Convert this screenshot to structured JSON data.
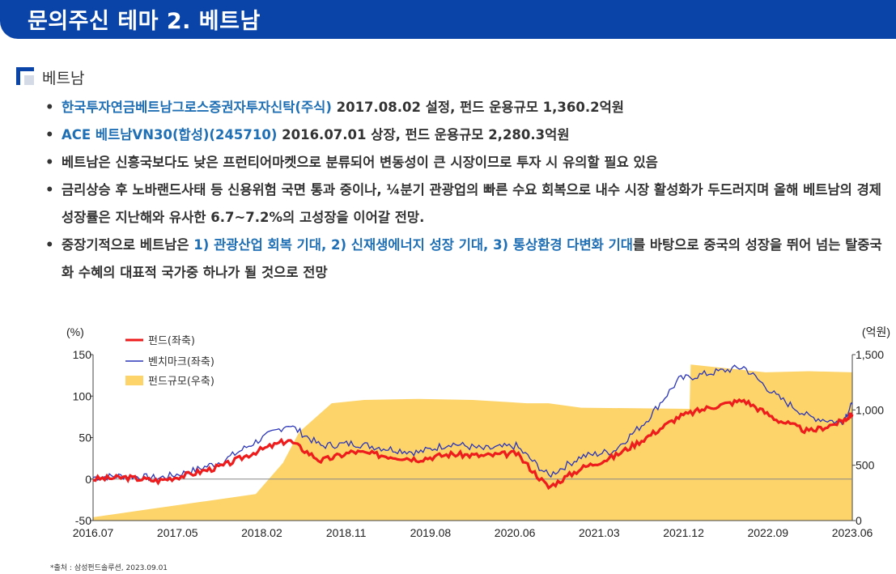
{
  "header": {
    "title": "문의주신 테마 2. 베트남"
  },
  "section": {
    "label": "베트남"
  },
  "bullets": [
    {
      "blue": "한국투자연금베트남그로스증권자투자신탁(주식)",
      "text": " 2017.08.02 설정, 펀드 운용규모 1,360.2억원"
    },
    {
      "blue": "ACE 베트남VN30(합성)(245710)",
      "text": " 2016.07.01 상장, 펀드 운용규모 2,280.3억원"
    },
    {
      "text": "베트남은 신흥국보다도 낮은 프런티어마켓으로 분류되어 변동성이 큰 시장이므로 투자 시 유의할 필요 있음"
    },
    {
      "text": "금리상승 후 노바랜드사태 등 신용위험 국면 통과 중이나, ¼분기 관광업의 빠른 수요 회복으로 내수 시장 활성화가 두드러지며 올해 베트남의 경제성장률은 지난해와 유사한 6.7~7.2%의 고성장을 이어갈 전망."
    },
    {
      "pre": "중장기적으로 베트남은 ",
      "blue": "1) 관광산업 회복 기대, 2) 신재생에너지 성장 기대, 3) 통상환경 다변화 기대",
      "post": "를 바탕으로 중국의 성장을 뛰어 넘는 탈중국화 수혜의 대표적 국가중 하나가 될 것으로 전망"
    }
  ],
  "chart_data": {
    "type": "line",
    "x_ticks": [
      "2016.07",
      "2017.05",
      "2018.02",
      "2018.11",
      "2019.08",
      "2020.06",
      "2021.03",
      "2021.12",
      "2022.09",
      "2023.06"
    ],
    "y_left": {
      "unit": "(%)",
      "min": -50,
      "max": 150,
      "ticks": [
        "150",
        "100",
        "50",
        "0",
        "-50"
      ],
      "tick_values": [
        150,
        100,
        50,
        0,
        -50
      ]
    },
    "y_right": {
      "unit": "(억원)",
      "min": 0,
      "max": 1500,
      "ticks": [
        "1,500",
        "1,000",
        "500",
        "0"
      ],
      "tick_values": [
        1500,
        1000,
        500,
        0
      ]
    },
    "colors": {
      "fund": "#ee1c1c",
      "benchmark": "#2b35b8",
      "aum": "#fdd46a"
    },
    "series": [
      {
        "name": "펀드(좌축)",
        "axis": "left",
        "x": [
          0,
          0.3,
          0.6,
          0.9,
          1.2,
          1.5,
          1.8,
          2.1,
          2.4,
          2.7,
          3.0,
          3.3,
          3.6,
          3.9,
          4.2,
          4.5,
          4.8,
          5.1,
          5.4,
          5.7,
          6.0,
          6.3,
          6.6,
          6.9,
          7.0
        ],
        "y": [
          0,
          2,
          -2,
          6,
          16,
          33,
          47,
          22,
          33,
          28,
          24,
          30,
          28,
          31,
          -10,
          13,
          27,
          50,
          75,
          87,
          95,
          72,
          57,
          69,
          78
        ]
      },
      {
        "name": "벤치마크(좌축)",
        "axis": "left",
        "x": [
          0,
          0.3,
          0.6,
          0.9,
          1.2,
          1.5,
          1.8,
          2.1,
          2.4,
          2.7,
          3.0,
          3.3,
          3.6,
          3.9,
          4.2,
          4.5,
          4.8,
          5.1,
          5.4,
          5.7,
          6.0,
          6.3,
          6.6,
          6.9,
          7.0
        ],
        "y": [
          2,
          4,
          1,
          9,
          22,
          45,
          66,
          40,
          43,
          37,
          32,
          43,
          36,
          40,
          4,
          27,
          34,
          70,
          120,
          128,
          135,
          100,
          75,
          68,
          90
        ]
      },
      {
        "name": "펀드규모(우축)",
        "axis": "right",
        "type": "area",
        "x": [
          0,
          0.5,
          1.0,
          1.5,
          1.75,
          1.9,
          2.2,
          2.5,
          3.0,
          3.5,
          4.0,
          4.2,
          4.5,
          5.5,
          5.51,
          6.2,
          6.6,
          7.0
        ],
        "y": [
          30,
          100,
          170,
          240,
          520,
          800,
          1060,
          1090,
          1100,
          1090,
          1060,
          1060,
          1020,
          1010,
          1410,
          1340,
          1350,
          1340
        ]
      }
    ]
  },
  "source": "*출처 : 삼성펀드솔루션, 2023.09.01"
}
